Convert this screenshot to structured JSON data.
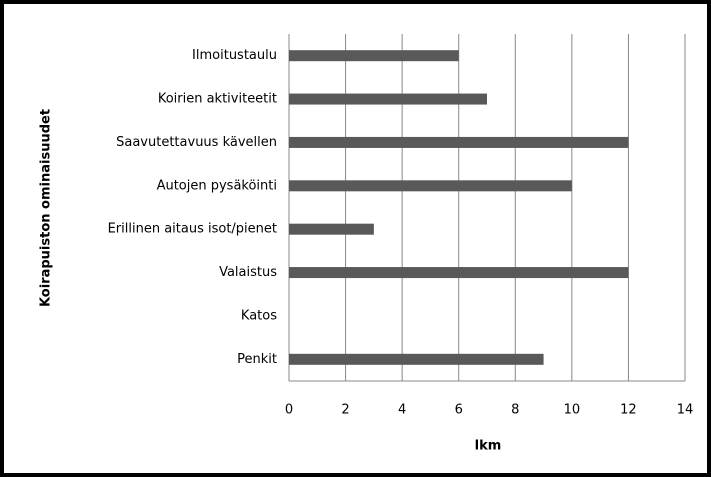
{
  "chart_data": {
    "type": "bar",
    "orientation": "horizontal",
    "categories": [
      "Ilmoitustaulu",
      "Koirien aktiviteetit",
      "Saavutettavuus kävellen",
      "Autojen pysäköinti",
      "Erillinen aitaus isot/pienet",
      "Valaistus",
      "Katos",
      "Penkit"
    ],
    "values": [
      6,
      7,
      12,
      10,
      3,
      12,
      0,
      9
    ],
    "color": "#595959",
    "xlim": [
      0,
      14
    ],
    "xticks": [
      0,
      2,
      4,
      6,
      8,
      10,
      12,
      14
    ],
    "xlabel": "lkm",
    "ylabel": "Koirapuiston ominaisuudet",
    "grid": true
  }
}
